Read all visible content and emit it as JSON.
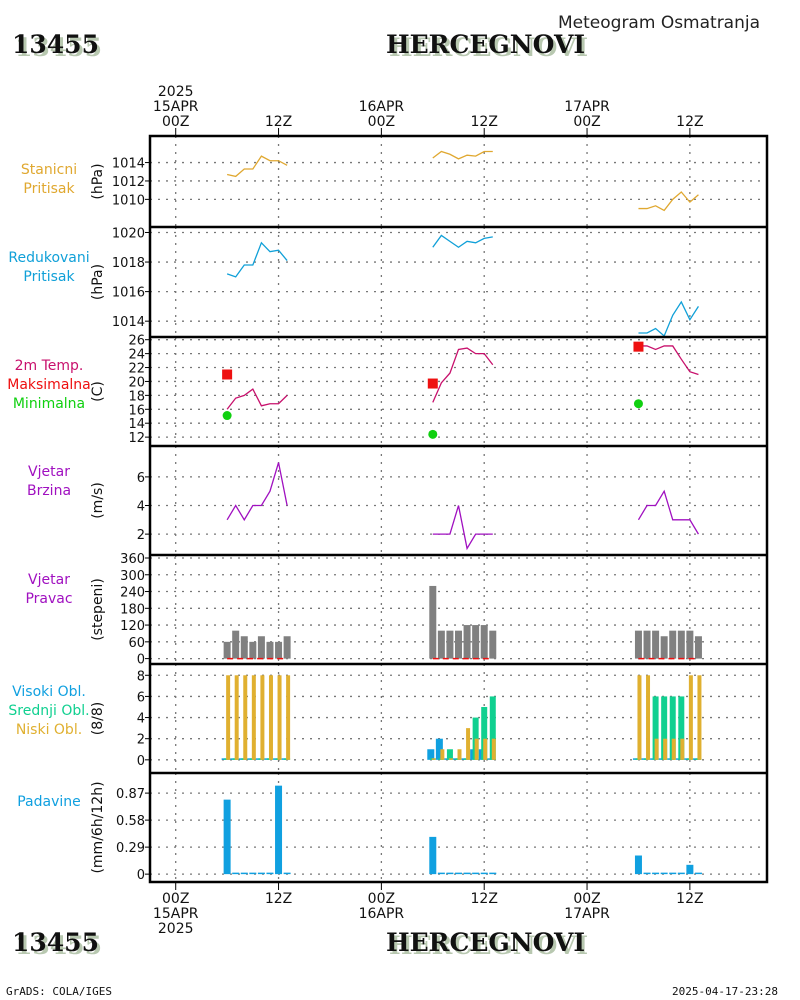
{
  "header": {
    "station_id": "13455",
    "station_name": "HERCEGNOVI",
    "subtitle": "Meteogram Osmatranja"
  },
  "footer": {
    "station_id": "13455",
    "station_name": "HERCEGNOVI",
    "credit": "GrADS: COLA/IGES",
    "timestamp": "2025-04-17-23:28"
  },
  "colors": {
    "station_pressure": "#e0a830",
    "reduced_pressure": "#10a0d8",
    "temperature": "#c8106c",
    "tmax": "#ee1010",
    "tmin": "#10d010",
    "wind_speed": "#a010c0",
    "wind_dir_bar": "#808080",
    "high_cloud": "#10a0e0",
    "mid_cloud": "#10d090",
    "low_cloud": "#e0b030",
    "precip": "#10a0e0"
  },
  "chart_data": {
    "type": "line",
    "title": "Meteogram Osmatranja - 13455 HERCEGNOVI",
    "time_axis": {
      "unit": "hours since 2025-04-15 00Z",
      "range": [
        -3,
        69
      ],
      "top_ticks": [
        {
          "h": 0,
          "lines": [
            "2025",
            "15APR",
            "00Z"
          ]
        },
        {
          "h": 12,
          "lines": [
            "12Z"
          ]
        },
        {
          "h": 24,
          "lines": [
            "16APR",
            "00Z"
          ]
        },
        {
          "h": 36,
          "lines": [
            "12Z"
          ]
        },
        {
          "h": 48,
          "lines": [
            "17APR",
            "00Z"
          ]
        },
        {
          "h": 60,
          "lines": [
            "12Z"
          ]
        }
      ],
      "bottom_ticks": [
        {
          "h": 0,
          "lines": [
            "00Z",
            "15APR",
            "2025"
          ]
        },
        {
          "h": 12,
          "lines": [
            "12Z"
          ]
        },
        {
          "h": 24,
          "lines": [
            "00Z",
            "16APR"
          ]
        },
        {
          "h": 36,
          "lines": [
            "12Z"
          ]
        },
        {
          "h": 48,
          "lines": [
            "00Z",
            "17APR"
          ]
        },
        {
          "h": 60,
          "lines": [
            "12Z"
          ]
        }
      ]
    },
    "panels": [
      {
        "id": "station-pressure",
        "labels": [
          "Stanicni",
          "Pritisak"
        ],
        "label_colors": [
          "station_pressure",
          "station_pressure"
        ],
        "unit": "(hPa)",
        "ylim": [
          1008.3,
          1015.8
        ],
        "yticks": [
          1010,
          1012,
          1014
        ],
        "series": [
          {
            "name": "Stanicni Pritisak",
            "color": "station_pressure",
            "type": "line",
            "segments": [
              {
                "x": [
                  6,
                  7,
                  8,
                  9,
                  10,
                  11,
                  12,
                  13
                ],
                "y": [
                  1012.7,
                  1012.5,
                  1013.3,
                  1013.3,
                  1014.7,
                  1014.2,
                  1014.2,
                  1013.7
                ]
              },
              {
                "x": [
                  30,
                  31,
                  32,
                  33,
                  34,
                  35,
                  36,
                  37
                ],
                "y": [
                  1014.5,
                  1015.2,
                  1014.9,
                  1014.4,
                  1014.8,
                  1014.7,
                  1015.2,
                  1015.2
                ]
              },
              {
                "x": [
                  54,
                  55,
                  56,
                  57,
                  58,
                  59,
                  60,
                  61
                ],
                "y": [
                  1009.0,
                  1009.0,
                  1009.3,
                  1008.8,
                  1010.0,
                  1010.8,
                  1009.7,
                  1010.5
                ]
              }
            ]
          }
        ]
      },
      {
        "id": "reduced-pressure",
        "labels": [
          "Redukovani",
          "Pritisak"
        ],
        "label_colors": [
          "reduced_pressure",
          "reduced_pressure"
        ],
        "unit": "(hPa)",
        "ylim": [
          1013.2,
          1020.1
        ],
        "yticks": [
          1014,
          1016,
          1018,
          1020
        ],
        "series": [
          {
            "name": "Redukovani Pritisak",
            "color": "reduced_pressure",
            "type": "line",
            "segments": [
              {
                "x": [
                  6,
                  7,
                  8,
                  9,
                  10,
                  11,
                  12,
                  13
                ],
                "y": [
                  1017.2,
                  1017.0,
                  1017.8,
                  1017.8,
                  1019.3,
                  1018.7,
                  1018.8,
                  1018.1
                ]
              },
              {
                "x": [
                  30,
                  31,
                  32,
                  33,
                  34,
                  35,
                  36,
                  37
                ],
                "y": [
                  1019.0,
                  1019.8,
                  1019.4,
                  1019.0,
                  1019.4,
                  1019.3,
                  1019.6,
                  1019.7
                ]
              },
              {
                "x": [
                  54,
                  55,
                  56,
                  57,
                  58,
                  59,
                  60,
                  61
                ],
                "y": [
                  1013.2,
                  1013.2,
                  1013.5,
                  1013.0,
                  1014.4,
                  1015.3,
                  1014.1,
                  1015.0
                ]
              }
            ]
          }
        ]
      },
      {
        "id": "temperature",
        "labels": [
          "2m Temp.",
          "Maksimalna",
          "Minimalna"
        ],
        "label_colors": [
          "temperature",
          "tmax",
          "tmin"
        ],
        "unit": "(C)",
        "ylim": [
          11.3,
          26.1
        ],
        "yticks": [
          12,
          14,
          16,
          18,
          20,
          22,
          24,
          26
        ],
        "series": [
          {
            "name": "2m Temp.",
            "color": "temperature",
            "type": "line",
            "segments": [
              {
                "x": [
                  6,
                  7,
                  8,
                  9,
                  10,
                  11,
                  12,
                  13
                ],
                "y": [
                  16.0,
                  17.6,
                  18.0,
                  18.9,
                  16.5,
                  16.8,
                  16.8,
                  18.0
                ]
              },
              {
                "x": [
                  30,
                  31,
                  32,
                  33,
                  34,
                  35,
                  36,
                  37
                ],
                "y": [
                  17.0,
                  19.8,
                  21.2,
                  24.6,
                  24.8,
                  24.0,
                  24.0,
                  22.4
                ]
              },
              {
                "x": [
                  54,
                  55,
                  56,
                  57,
                  58,
                  59,
                  60,
                  61
                ],
                "y": [
                  25.1,
                  25.1,
                  24.6,
                  25.1,
                  25.1,
                  23.2,
                  21.4,
                  21.0
                ]
              }
            ]
          },
          {
            "name": "Maksimalna",
            "color": "tmax",
            "type": "square",
            "x": [
              6,
              30,
              54
            ],
            "y": [
              21.0,
              19.7,
              25.0
            ]
          },
          {
            "name": "Minimalna",
            "color": "tmin",
            "type": "dot",
            "x": [
              6,
              30,
              54
            ],
            "y": [
              15.1,
              12.4,
              16.8
            ]
          }
        ]
      },
      {
        "id": "wind-speed",
        "labels": [
          "Vjetar",
          "Brzina"
        ],
        "label_colors": [
          "wind_speed",
          "wind_speed"
        ],
        "unit": "(m/s)",
        "ylim": [
          1.1,
          7.6
        ],
        "yticks": [
          2,
          4,
          6
        ],
        "series": [
          {
            "name": "Vjetar Brzina",
            "color": "wind_speed",
            "type": "line",
            "segments": [
              {
                "x": [
                  6,
                  7,
                  8,
                  9,
                  10,
                  11,
                  12,
                  13
                ],
                "y": [
                  3,
                  4,
                  3,
                  4,
                  4,
                  5,
                  7,
                  4
                ]
              },
              {
                "x": [
                  30,
                  31,
                  32,
                  33,
                  34,
                  35,
                  36,
                  37
                ],
                "y": [
                  2,
                  2,
                  2,
                  4,
                  1,
                  2,
                  2,
                  2
                ]
              },
              {
                "x": [
                  54,
                  55,
                  56,
                  57,
                  58,
                  59,
                  60,
                  61
                ],
                "y": [
                  3,
                  4,
                  4,
                  5,
                  3,
                  3,
                  3,
                  2
                ]
              }
            ]
          }
        ]
      },
      {
        "id": "wind-direction",
        "labels": [
          "Vjetar",
          "Pravac"
        ],
        "label_colors": [
          "wind_speed",
          "wind_speed"
        ],
        "unit": "(stepeni)",
        "ylim": [
          -5,
          360
        ],
        "yticks": [
          0,
          60,
          120,
          180,
          240,
          300,
          360
        ],
        "series": [
          {
            "name": "Vjetar Pravac",
            "color": "wind_dir_bar",
            "type": "bar",
            "x": [
              6,
              7,
              8,
              9,
              10,
              11,
              12,
              13,
              30,
              31,
              32,
              33,
              34,
              35,
              36,
              37,
              54,
              55,
              56,
              57,
              58,
              59,
              60,
              61
            ],
            "y": [
              60,
              100,
              80,
              60,
              80,
              60,
              60,
              80,
              260,
              100,
              100,
              100,
              120,
              120,
              120,
              100,
              100,
              100,
              100,
              80,
              100,
              100,
              100,
              80
            ]
          },
          {
            "name": "calm marker",
            "color": "tmax",
            "type": "dashed",
            "y": 0
          }
        ]
      },
      {
        "id": "clouds",
        "labels": [
          "Visoki Obl.",
          "Srednji Obl.",
          "Niski Obl."
        ],
        "label_colors": [
          "high_cloud",
          "mid_cloud",
          "low_cloud"
        ],
        "unit": "(8/8)",
        "ylim": [
          -0.3,
          8.5
        ],
        "yticks": [
          0,
          2,
          4,
          6,
          8
        ],
        "series": [
          {
            "name": "Visoki Obl.",
            "color": "high_cloud",
            "type": "bar",
            "x": [
              6,
              7,
              8,
              9,
              10,
              11,
              12,
              13,
              30,
              31,
              32,
              33,
              34,
              35,
              36,
              37,
              54,
              55,
              56,
              57,
              58,
              59,
              60,
              61
            ],
            "y": [
              0,
              0,
              0,
              0,
              0,
              0,
              0,
              0,
              1,
              2,
              0,
              0,
              0,
              1,
              1,
              0,
              0,
              0,
              0,
              0,
              0,
              0,
              0,
              0
            ]
          },
          {
            "name": "Srednji Obl.",
            "color": "mid_cloud",
            "type": "bar",
            "x": [
              6,
              7,
              8,
              9,
              10,
              11,
              12,
              13,
              30,
              31,
              32,
              33,
              34,
              35,
              36,
              37,
              54,
              55,
              56,
              57,
              58,
              59,
              60,
              61
            ],
            "y": [
              0,
              0,
              0,
              0,
              0,
              0,
              0,
              0,
              0,
              0,
              1,
              0,
              0,
              4,
              5,
              6,
              0,
              0,
              6,
              6,
              6,
              6,
              0,
              0
            ]
          },
          {
            "name": "Niski Obl.",
            "color": "low_cloud",
            "type": "bar",
            "x": [
              6,
              7,
              8,
              9,
              10,
              11,
              12,
              13,
              30,
              31,
              32,
              33,
              34,
              35,
              36,
              37,
              54,
              55,
              56,
              57,
              58,
              59,
              60,
              61
            ],
            "y": [
              8,
              8,
              8,
              8,
              8,
              8,
              8,
              8,
              0,
              1,
              0,
              1,
              3,
              2,
              2,
              2,
              8,
              8,
              2,
              2,
              2,
              2,
              8,
              8
            ]
          }
        ]
      },
      {
        "id": "precipitation",
        "labels": [
          "Padavine"
        ],
        "label_colors": [
          "precip"
        ],
        "unit": "(mm/6h/12h)",
        "ylim": [
          -0.02,
          1.0
        ],
        "yticks": [
          0,
          0.29,
          0.58,
          0.87
        ],
        "ytick_labels": [
          "0",
          "0.29",
          "0.58",
          "0.87"
        ],
        "series": [
          {
            "name": "Padavine",
            "color": "precip",
            "type": "bar",
            "x": [
              6,
              7,
              8,
              9,
              10,
              11,
              12,
              13,
              30,
              31,
              32,
              33,
              34,
              35,
              36,
              37,
              54,
              55,
              56,
              57,
              58,
              59,
              60,
              61
            ],
            "y": [
              0.8,
              0,
              0,
              0,
              0,
              0,
              0.95,
              0,
              0.4,
              0,
              0,
              0,
              0,
              0,
              0,
              0,
              0.2,
              0,
              0,
              0,
              0,
              0,
              0.1,
              0
            ]
          }
        ]
      }
    ]
  }
}
